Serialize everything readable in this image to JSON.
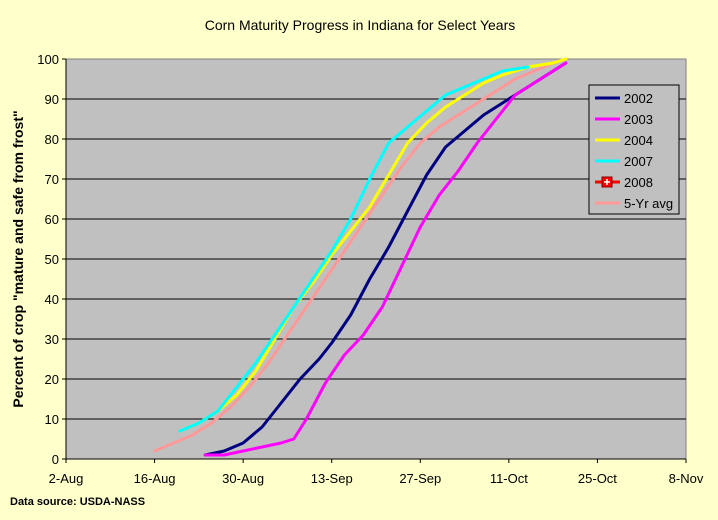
{
  "chart_data": {
    "type": "line",
    "title": "Corn Maturity Progress in Indiana for Select Years",
    "xlabel": "",
    "ylabel": "Percent of crop \"mature and safe from frost\"",
    "source": "Data source: USDA-NASS",
    "x_type": "date",
    "xlim": [
      "2-Aug",
      "8-Nov"
    ],
    "ylim": [
      0,
      100
    ],
    "x_ticks": [
      "2-Aug",
      "16-Aug",
      "30-Aug",
      "13-Sep",
      "27-Sep",
      "11-Oct",
      "25-Oct",
      "8-Nov"
    ],
    "y_ticks": [
      0,
      10,
      20,
      30,
      40,
      50,
      60,
      70,
      80,
      90,
      100
    ],
    "grid": "horizontal",
    "legend_position": "right",
    "plot_background": "#c0c0c0",
    "series": [
      {
        "name": "2002",
        "color": "#000080",
        "points": [
          [
            "24-Aug",
            1
          ],
          [
            "27-Aug",
            2
          ],
          [
            "30-Aug",
            4
          ],
          [
            "2-Sep",
            8
          ],
          [
            "5-Sep",
            14
          ],
          [
            "8-Sep",
            20
          ],
          [
            "11-Sep",
            25
          ],
          [
            "13-Sep",
            29
          ],
          [
            "16-Sep",
            36
          ],
          [
            "19-Sep",
            45
          ],
          [
            "22-Sep",
            53
          ],
          [
            "25-Sep",
            62
          ],
          [
            "28-Sep",
            71
          ],
          [
            "1-Oct",
            78
          ],
          [
            "4-Oct",
            82
          ],
          [
            "7-Oct",
            86
          ],
          [
            "10-Oct",
            89
          ],
          [
            "13-Oct",
            92
          ],
          [
            "17-Oct",
            96
          ],
          [
            "20-Oct",
            99
          ]
        ]
      },
      {
        "name": "2003",
        "color": "#ff00ff",
        "points": [
          [
            "24-Aug",
            1
          ],
          [
            "27-Aug",
            1
          ],
          [
            "30-Aug",
            2
          ],
          [
            "2-Sep",
            3
          ],
          [
            "5-Sep",
            4
          ],
          [
            "7-Sep",
            5
          ],
          [
            "9-Sep",
            10
          ],
          [
            "12-Sep",
            19
          ],
          [
            "15-Sep",
            26
          ],
          [
            "18-Sep",
            31
          ],
          [
            "21-Sep",
            38
          ],
          [
            "24-Sep",
            48
          ],
          [
            "27-Sep",
            58
          ],
          [
            "30-Sep",
            66
          ],
          [
            "3-Oct",
            72
          ],
          [
            "6-Oct",
            79
          ],
          [
            "9-Oct",
            85
          ],
          [
            "12-Oct",
            91
          ],
          [
            "16-Oct",
            95
          ],
          [
            "20-Oct",
            99
          ]
        ]
      },
      {
        "name": "2004",
        "color": "#ffff00",
        "points": [
          [
            "20-Aug",
            7
          ],
          [
            "23-Aug",
            9
          ],
          [
            "26-Aug",
            12
          ],
          [
            "29-Aug",
            16
          ],
          [
            "1-Sep",
            22
          ],
          [
            "4-Sep",
            30
          ],
          [
            "7-Sep",
            38
          ],
          [
            "10-Sep",
            44
          ],
          [
            "13-Sep",
            51
          ],
          [
            "16-Sep",
            57
          ],
          [
            "19-Sep",
            63
          ],
          [
            "22-Sep",
            71
          ],
          [
            "25-Sep",
            79
          ],
          [
            "28-Sep",
            84
          ],
          [
            "1-Oct",
            88
          ],
          [
            "4-Oct",
            91
          ],
          [
            "7-Oct",
            94
          ],
          [
            "10-Oct",
            96
          ],
          [
            "14-Oct",
            98
          ],
          [
            "18-Oct",
            99
          ],
          [
            "20-Oct",
            100
          ]
        ]
      },
      {
        "name": "2007",
        "color": "#00ffff",
        "points": [
          [
            "20-Aug",
            7
          ],
          [
            "23-Aug",
            9
          ],
          [
            "26-Aug",
            12
          ],
          [
            "29-Aug",
            18
          ],
          [
            "1-Sep",
            24
          ],
          [
            "4-Sep",
            31
          ],
          [
            "7-Sep",
            38
          ],
          [
            "10-Sep",
            45
          ],
          [
            "13-Sep",
            52
          ],
          [
            "16-Sep",
            60
          ],
          [
            "19-Sep",
            70
          ],
          [
            "22-Sep",
            79
          ],
          [
            "25-Sep",
            83
          ],
          [
            "28-Sep",
            87
          ],
          [
            "1-Oct",
            91
          ],
          [
            "4-Oct",
            93
          ],
          [
            "7-Oct",
            95
          ],
          [
            "10-Oct",
            97
          ],
          [
            "14-Oct",
            98
          ]
        ]
      },
      {
        "name": "2008",
        "color": "#ff0000",
        "marker": "square-plus",
        "points": []
      },
      {
        "name": "5-Yr avg",
        "color": "#ff9999",
        "points": [
          [
            "16-Aug",
            2
          ],
          [
            "19-Aug",
            4
          ],
          [
            "22-Aug",
            6
          ],
          [
            "25-Aug",
            9
          ],
          [
            "28-Aug",
            13
          ],
          [
            "31-Aug",
            18
          ],
          [
            "3-Sep",
            24
          ],
          [
            "6-Sep",
            31
          ],
          [
            "9-Sep",
            38
          ],
          [
            "12-Sep",
            45
          ],
          [
            "15-Sep",
            52
          ],
          [
            "18-Sep",
            59
          ],
          [
            "21-Sep",
            66
          ],
          [
            "24-Sep",
            73
          ],
          [
            "27-Sep",
            79
          ],
          [
            "30-Sep",
            83
          ],
          [
            "3-Oct",
            86
          ],
          [
            "6-Oct",
            89
          ],
          [
            "9-Oct",
            92
          ],
          [
            "12-Oct",
            95
          ],
          [
            "15-Oct",
            97
          ],
          [
            "18-Oct",
            99
          ],
          [
            "20-Oct",
            100
          ]
        ]
      }
    ]
  }
}
